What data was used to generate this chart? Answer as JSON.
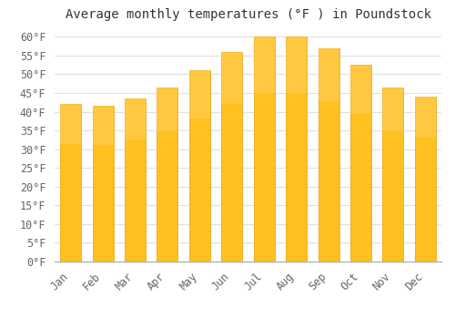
{
  "title": "Average monthly temperatures (°F ) in Poundstock",
  "months": [
    "Jan",
    "Feb",
    "Mar",
    "Apr",
    "May",
    "Jun",
    "Jul",
    "Aug",
    "Sep",
    "Oct",
    "Nov",
    "Dec"
  ],
  "values": [
    42,
    41.5,
    43.5,
    46.5,
    51,
    56,
    60,
    60,
    57,
    52.5,
    46.5,
    44
  ],
  "bar_color_top": "#FFC020",
  "bar_color_bottom": "#FFB000",
  "bar_edge_color": "#E8A000",
  "ylim": [
    0,
    63
  ],
  "yticks": [
    0,
    5,
    10,
    15,
    20,
    25,
    30,
    35,
    40,
    45,
    50,
    55,
    60
  ],
  "background_color": "#FFFFFF",
  "grid_color": "#E0E0E0",
  "title_fontsize": 10,
  "tick_fontsize": 8.5,
  "bar_width": 0.65
}
